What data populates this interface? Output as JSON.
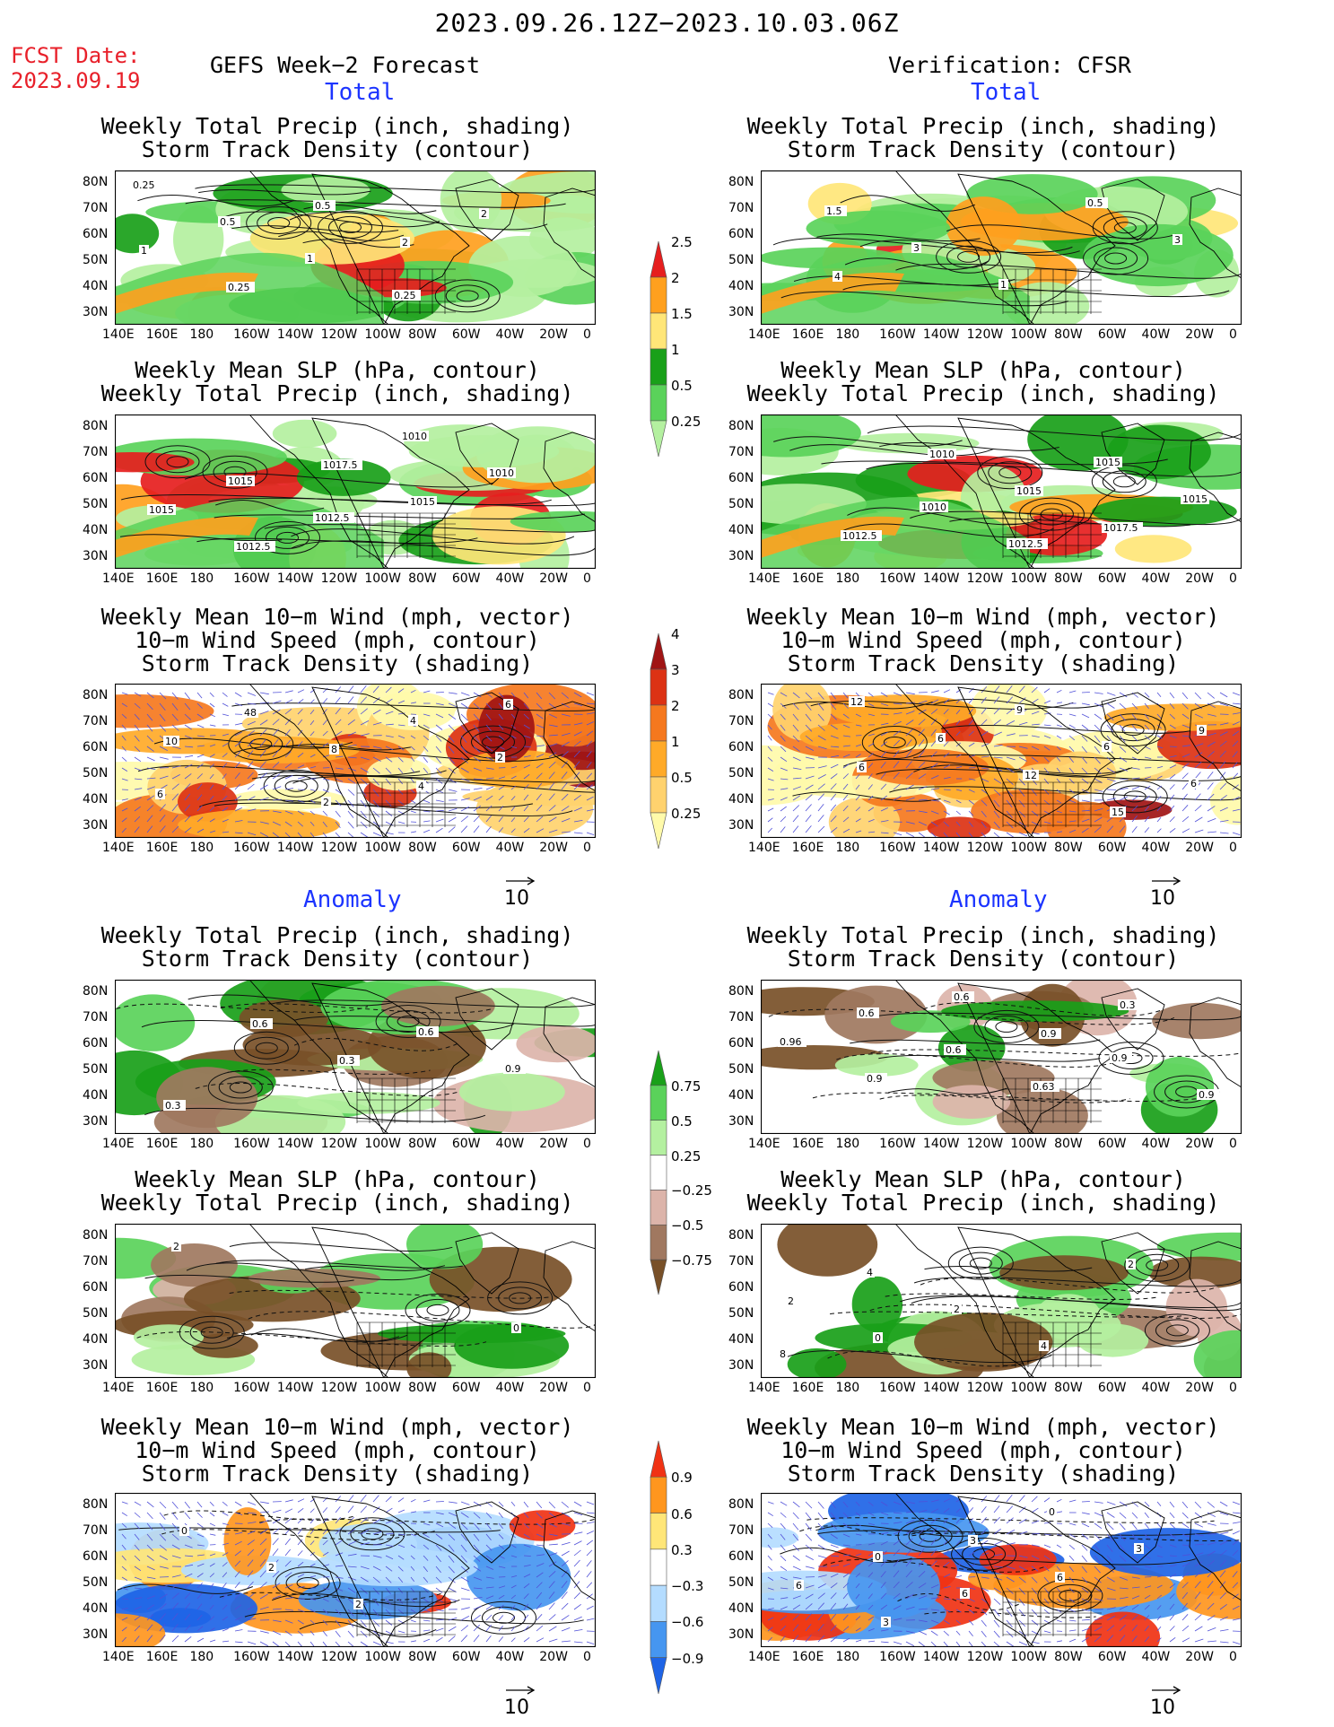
{
  "header": {
    "title": "2023.09.26.12Z−2023.10.03.06Z",
    "fcst_label": "FCST Date:",
    "fcst_date": "2023.09.19",
    "left_heading": "GEFS Week−2 Forecast",
    "right_heading": "Verification: CFSR"
  },
  "sections": {
    "total": "Total",
    "anomaly": "Anomaly"
  },
  "panel_titles": {
    "precip_storm": [
      "Weekly Total Precip (inch, shading)",
      "Storm Track Density (contour)"
    ],
    "slp_precip": [
      "Weekly Mean SLP (hPa, contour)",
      "Weekly Total Precip (inch, shading)"
    ],
    "wind_storm": [
      "Weekly Mean 10−m Wind (mph, vector)",
      "10−m Wind Speed (mph, contour)",
      "Storm Track Density (shading)"
    ]
  },
  "axes": {
    "lat_labels": [
      "80N",
      "70N",
      "60N",
      "50N",
      "40N",
      "30N"
    ],
    "lon_labels": [
      "140E",
      "160E",
      "180",
      "160W",
      "140W",
      "120W",
      "100W",
      "80W",
      "60W",
      "40W",
      "20W",
      "0"
    ]
  },
  "vector_reference": "10",
  "colorbars": {
    "precip_total": {
      "colors": [
        "#b4f0a0",
        "#5ad25a",
        "#19a019",
        "#ffe678",
        "#ffa01e",
        "#e61e1e"
      ],
      "labels": [
        "0.25",
        "0.5",
        "1",
        "1.5",
        "2",
        "2.5"
      ]
    },
    "storm_total": {
      "colors": [
        "#fffaaa",
        "#ffd26e",
        "#ffaa28",
        "#f5781e",
        "#dc3214",
        "#a01414"
      ],
      "labels": [
        "0.25",
        "0.5",
        "1",
        "2",
        "3",
        "4"
      ]
    },
    "precip_anom": {
      "colors": [
        "#785028",
        "#a07860",
        "#dcb4aa",
        "#ffffff",
        "#b4f0a0",
        "#5ad25a",
        "#19a019"
      ],
      "labels": [
        "−0.75",
        "−0.5",
        "−0.25",
        "0.25",
        "0.5",
        "0.75"
      ]
    },
    "storm_anom": {
      "colors": [
        "#1e64e6",
        "#4696f0",
        "#b4dcff",
        "#ffffff",
        "#ffe678",
        "#ff961e",
        "#f03214"
      ],
      "labels": [
        "−0.9",
        "−0.6",
        "−0.3",
        "0.3",
        "0.6",
        "0.9"
      ]
    }
  },
  "panels": [
    {
      "id": "fc-total-precip",
      "labels": [
        "0.25",
        "0.5",
        "1",
        "0.25",
        "2",
        "1",
        "0.25",
        "0.5",
        "2"
      ]
    },
    {
      "id": "ob-total-precip",
      "labels": [
        "1.5",
        "3",
        "1",
        "0.5",
        "3",
        "4"
      ]
    },
    {
      "id": "fc-total-slp",
      "labels": [
        "1015",
        "1012.5",
        "1010",
        "1010",
        "1015",
        "1012.5",
        "1017.5",
        "1015"
      ]
    },
    {
      "id": "ob-total-slp",
      "labels": [
        "1010",
        "1012.5",
        "1015",
        "1015",
        "1012.5",
        "1010",
        "1015",
        "1017.5"
      ]
    },
    {
      "id": "fc-total-wind",
      "labels": [
        "2",
        "4",
        "2",
        "6",
        "48",
        "8",
        "4",
        "6",
        "10"
      ]
    },
    {
      "id": "ob-total-wind",
      "labels": [
        "9",
        "6",
        "6",
        "12",
        "6",
        "12",
        "15",
        "9",
        "6"
      ]
    },
    {
      "id": "fc-anom-precip",
      "labels": [
        "0.6",
        "0.9",
        "0.3",
        "0.6",
        "0.3"
      ]
    },
    {
      "id": "ob-anom-precip",
      "labels": [
        "0.9",
        "0.9",
        "0.6",
        "0.6",
        "0.63",
        "0.3",
        "0.96",
        "0.9",
        "0.6",
        "0.9"
      ]
    },
    {
      "id": "fc-anom-slp",
      "labels": [
        "0",
        "2"
      ]
    },
    {
      "id": "ob-anom-slp",
      "labels": [
        "8",
        "4",
        "2",
        "4",
        "2",
        "2",
        "0"
      ]
    },
    {
      "id": "fc-anom-wind",
      "labels": [
        "0",
        "2",
        "2"
      ]
    },
    {
      "id": "ob-anom-wind",
      "labels": [
        "0",
        "6",
        "0",
        "3",
        "6",
        "3",
        "3",
        "6"
      ]
    }
  ]
}
